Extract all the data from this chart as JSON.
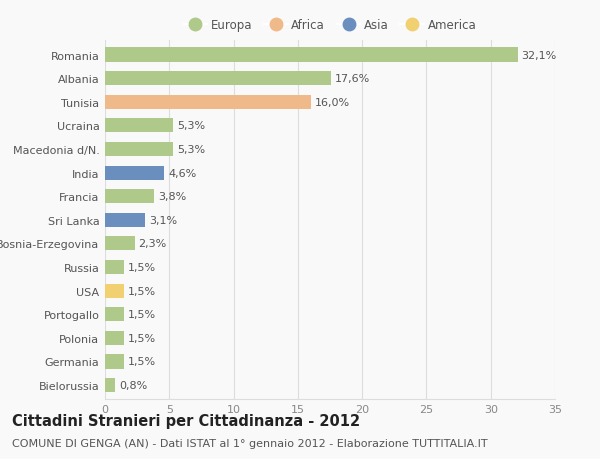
{
  "countries": [
    "Romania",
    "Albania",
    "Tunisia",
    "Ucraina",
    "Macedonia d/N.",
    "India",
    "Francia",
    "Sri Lanka",
    "Bosnia-Erzegovina",
    "Russia",
    "USA",
    "Portogallo",
    "Polonia",
    "Germania",
    "Bielorussia"
  ],
  "values": [
    32.1,
    17.6,
    16.0,
    5.3,
    5.3,
    4.6,
    3.8,
    3.1,
    2.3,
    1.5,
    1.5,
    1.5,
    1.5,
    1.5,
    0.8
  ],
  "labels": [
    "32,1%",
    "17,6%",
    "16,0%",
    "5,3%",
    "5,3%",
    "4,6%",
    "3,8%",
    "3,1%",
    "2,3%",
    "1,5%",
    "1,5%",
    "1,5%",
    "1,5%",
    "1,5%",
    "0,8%"
  ],
  "continents": [
    "Europa",
    "Europa",
    "Africa",
    "Europa",
    "Europa",
    "Asia",
    "Europa",
    "Asia",
    "Europa",
    "Europa",
    "America",
    "Europa",
    "Europa",
    "Europa",
    "Europa"
  ],
  "colors": {
    "Europa": "#aec98a",
    "Africa": "#f0b98a",
    "Asia": "#6a8fbf",
    "America": "#f0d070"
  },
  "legend_order": [
    "Europa",
    "Africa",
    "Asia",
    "America"
  ],
  "title": "Cittadini Stranieri per Cittadinanza - 2012",
  "subtitle": "COMUNE DI GENGA (AN) - Dati ISTAT al 1° gennaio 2012 - Elaborazione TUTTITALIA.IT",
  "xlim": [
    0,
    35
  ],
  "xticks": [
    0,
    5,
    10,
    15,
    20,
    25,
    30,
    35
  ],
  "background_color": "#f9f9f9",
  "grid_color": "#dddddd",
  "bar_height": 0.6,
  "title_fontsize": 10.5,
  "subtitle_fontsize": 8,
  "tick_fontsize": 8,
  "label_fontsize": 8
}
